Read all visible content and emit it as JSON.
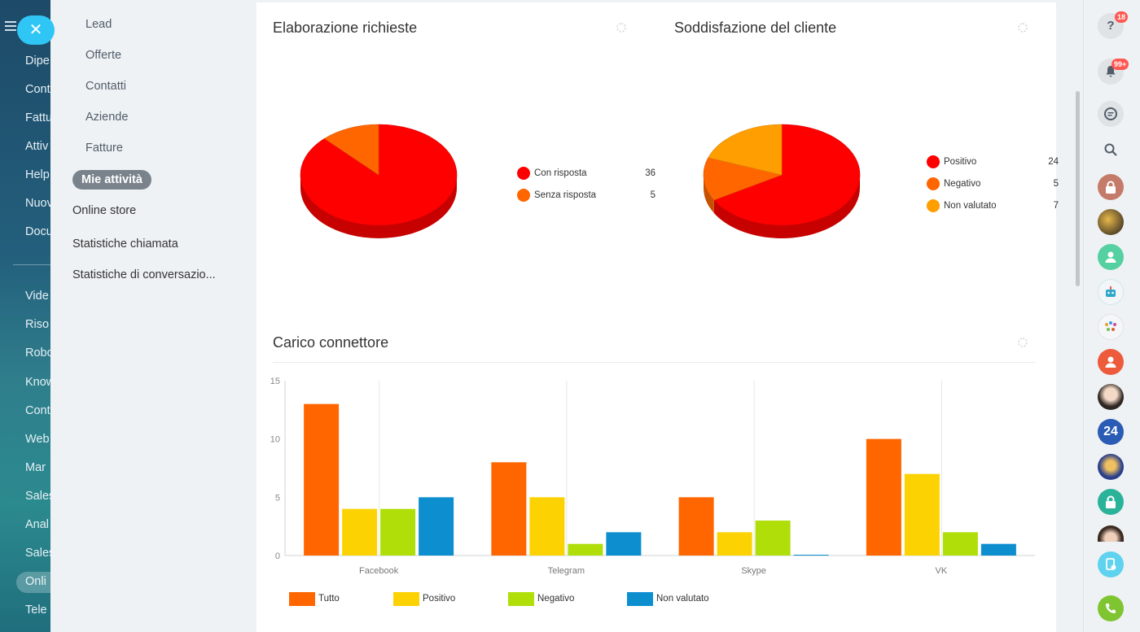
{
  "bg_nav": {
    "items": [
      "Dipe",
      "Cont",
      "Fattu",
      "Attiv",
      "Help",
      "Nuov",
      "Docu",
      "Vide",
      "Riso",
      "Robo",
      "Know",
      "Cont",
      "Web",
      "Mar",
      "Sales",
      "Anal",
      "Sales",
      "Onli",
      "Tele"
    ]
  },
  "slider_menu": {
    "sub_items": [
      "Lead",
      "Offerte",
      "Contatti",
      "Aziende",
      "Fatture"
    ],
    "active_item": "Mie attività",
    "items": [
      "Online store",
      "Statistiche chiamata",
      "Statistiche di conversazio..."
    ]
  },
  "widgets": {
    "requests": {
      "title": "Elaborazione richieste",
      "legend": [
        {
          "label": "Con risposta",
          "value": "36",
          "color": "#ff0000"
        },
        {
          "label": "Senza risposta",
          "value": "5",
          "color": "#ff6600"
        }
      ]
    },
    "satisfaction": {
      "title": "Soddisfazione del cliente",
      "legend": [
        {
          "label": "Positivo",
          "value": "24",
          "color": "#ff0000"
        },
        {
          "label": "Negativo",
          "value": "5",
          "color": "#ff6600"
        },
        {
          "label": "Non valutato",
          "value": "7",
          "color": "#ff9e01"
        }
      ]
    },
    "connector": {
      "title": "Carico connettore"
    }
  },
  "chart_data": [
    {
      "type": "pie",
      "title": "Elaborazione richieste",
      "labels": [
        "Con risposta",
        "Senza risposta"
      ],
      "values": [
        36,
        5
      ],
      "colors": [
        "#ff0000",
        "#ff6600"
      ]
    },
    {
      "type": "pie",
      "title": "Soddisfazione del cliente",
      "labels": [
        "Positivo",
        "Negativo",
        "Non valutato"
      ],
      "values": [
        24,
        5,
        7
      ],
      "colors": [
        "#ff0000",
        "#ff6600",
        "#ff9e01"
      ]
    },
    {
      "type": "bar",
      "title": "Carico connettore",
      "categories": [
        "Facebook",
        "Telegram",
        "Skype",
        "VK"
      ],
      "series": [
        {
          "name": "Tutto",
          "values": [
            13,
            8,
            5,
            10
          ],
          "color": "#ff6600"
        },
        {
          "name": "Positivo",
          "values": [
            4,
            5,
            2,
            7
          ],
          "color": "#fcd202"
        },
        {
          "name": "Negativo",
          "values": [
            4,
            1,
            3,
            2
          ],
          "color": "#b0de09"
        },
        {
          "name": "Non valutato",
          "values": [
            5,
            2,
            0,
            1
          ],
          "color": "#0d8ecf"
        }
      ],
      "y_ticks": [
        "0",
        "5",
        "10",
        "15"
      ],
      "ylim": [
        0,
        15
      ],
      "grid": true,
      "legend": "bottom-left"
    }
  ],
  "right_rail": {
    "help_badge": "18",
    "notif_badge": "99+",
    "b24_label": "24"
  }
}
